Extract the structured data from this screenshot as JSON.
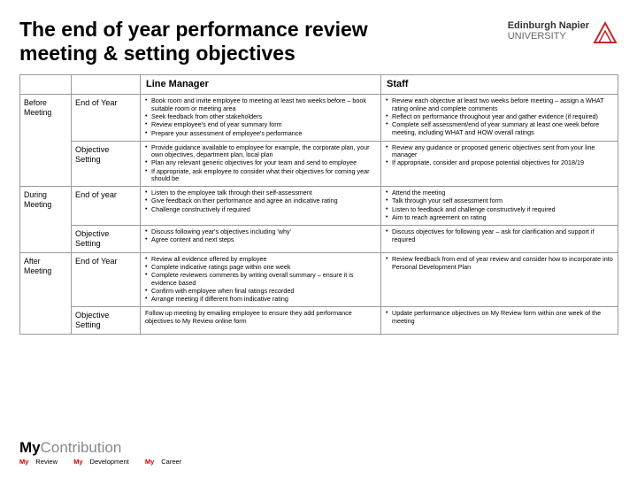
{
  "title": "The end of year performance review meeting & setting objectives",
  "university": {
    "name": "Edinburgh Napier",
    "sub": "UNIVERSITY"
  },
  "table": {
    "headers": {
      "col3": "Line Manager",
      "col4": "Staff"
    },
    "phases": [
      {
        "label": "Before Meeting",
        "rows": [
          {
            "stage": "End of Year",
            "lm": [
              "Book room and invite employee to meeting at least two weeks before – book suitable room or meeting area",
              "Seek feedback from other stakeholders",
              "Review employee's end of year summary form",
              "Prepare your assessment of employee's performance"
            ],
            "staff": [
              "Review each objective at least two weeks before meeting – assign a WHAT rating online and complete comments",
              "Reflect on performance throughout year and gather evidence (if required)",
              "Complete self assessment/end of year summary at least one week before meeting, including WHAT and HOW overall ratings"
            ]
          },
          {
            "stage": "Objective Setting",
            "lm": [
              "Provide guidance available to employee for example, the corporate plan, your own objectives, department plan, local plan",
              "Plan any relevant generic objectives for your team and send to employee",
              "If appropriate, ask employee to consider what their objectives for coming year should be"
            ],
            "staff": [
              "Review any guidance or proposed generic objectives sent from your line manager",
              "If appropriate, consider and propose potential objectives for 2018/19"
            ]
          }
        ]
      },
      {
        "label": "During Meeting",
        "rows": [
          {
            "stage": "End of year",
            "lm": [
              "Listen to the employee talk through their self-assessment",
              "Give feedback on their performance and agree an indicative rating",
              "Challenge constructively if required"
            ],
            "staff": [
              "Attend the meeting",
              "Talk through your self assessment form",
              "Listen to feedback and challenge constructively if required",
              "Aim to reach agreement on rating"
            ]
          },
          {
            "stage": "Objective Setting",
            "lm": [
              "Discuss following year's objectives including 'why'",
              "Agree content and next steps"
            ],
            "staff": [
              "Discuss objectives for following year – ask for clarification and support if required"
            ]
          }
        ]
      },
      {
        "label": "After Meeting",
        "rows": [
          {
            "stage": "End of Year",
            "lm": [
              "Review all evidence offered by employee",
              "Complete indicative ratings page within one week",
              "Complete reviewers comments by writing overall summary – ensure it is evidence based",
              "Confirm with employee when final ratings recorded",
              "Arrange meeting if different from indicative rating"
            ],
            "staff": [
              "Review feedback from end of year review and consider how to incorporate into Personal Development Plan"
            ]
          },
          {
            "stage": "Objective Setting",
            "lm_plain": "Follow up meeting by emailing employee to ensure they add performance objectives to My Review online form",
            "staff": [
              "Update performance objectives on My Review form within one week of the meeting"
            ]
          }
        ]
      }
    ]
  },
  "footer": {
    "brand_pre": "My",
    "brand_post": "Contribution",
    "tags": [
      "Review",
      "Development",
      "Career"
    ]
  },
  "colors": {
    "logo_red": "#c62828",
    "logo_grey": "#777"
  }
}
